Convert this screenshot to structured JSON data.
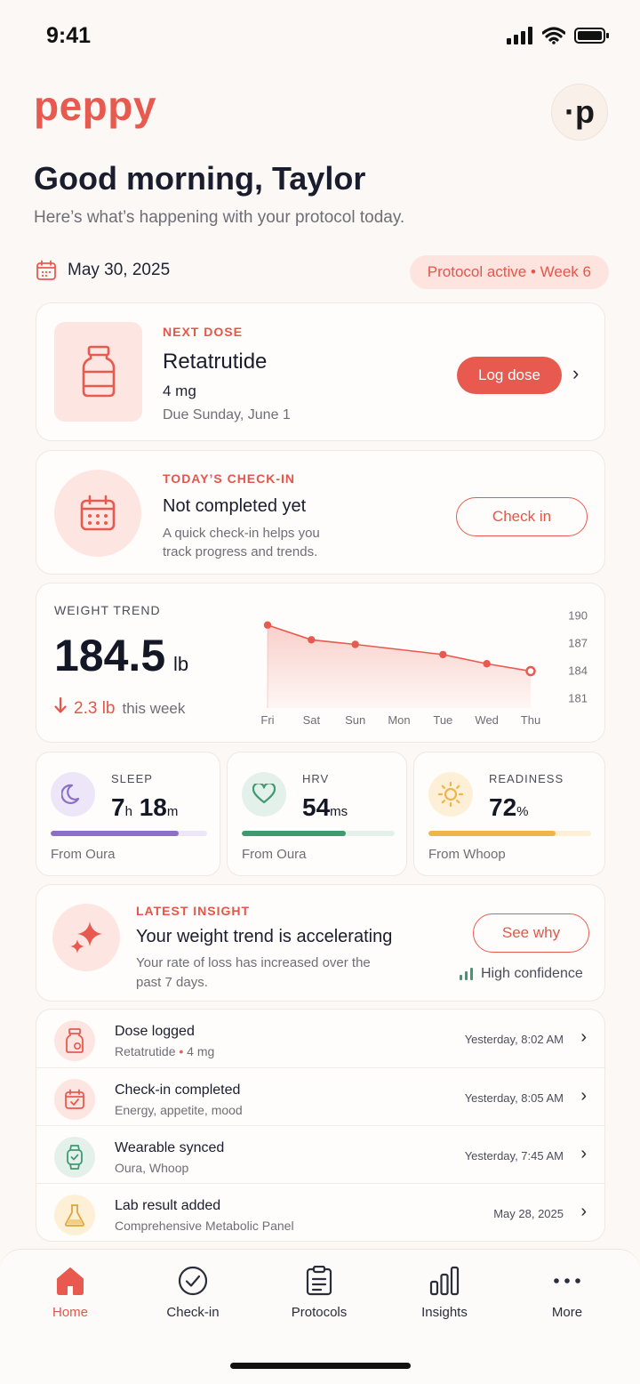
{
  "status": {
    "time": "9:41"
  },
  "brand": {
    "logo": "peppy",
    "avatar": "·p",
    "accent": "#e85a4f"
  },
  "header": {
    "greeting": "Good morning, Taylor",
    "subtitle": "Here’s what’s happening with your protocol today."
  },
  "date_row": {
    "date": "May 30, 2025",
    "protocol_status": "Protocol active • Week 6"
  },
  "next_dose": {
    "eyebrow": "NEXT DOSE",
    "name": "Retatrutide",
    "amount": "4 mg",
    "due": "Due Sunday, June 1",
    "button": "Log dose",
    "icon": "medicine-bottle-icon"
  },
  "checkin": {
    "eyebrow": "TODAY’S CHECK-IN",
    "title": "Not completed yet",
    "description": "A quick check-in helps you track progress and trends.",
    "button": "Check in",
    "icon": "calendar-icon"
  },
  "weight": {
    "label": "WEIGHT TREND",
    "value": "184.5",
    "unit": "lb",
    "delta": "2.3 lb",
    "period": "this week"
  },
  "chart_data": {
    "type": "area",
    "categories": [
      "Fri",
      "Sat",
      "Sun",
      "Mon",
      "Tue",
      "Wed",
      "Thu"
    ],
    "values": [
      189.0,
      187.4,
      186.9,
      null,
      185.8,
      184.8,
      184.0
    ],
    "point_days": [
      "Fri",
      "Sat",
      "Sun",
      "Tue",
      "Wed",
      "Thu"
    ],
    "point_values": [
      189.0,
      187.4,
      186.9,
      185.8,
      184.8,
      184.0
    ],
    "y_ticks": [
      "190",
      "187",
      "184",
      "181"
    ],
    "ylim": [
      180,
      191
    ],
    "title": "WEIGHT TREND",
    "xlabel": "",
    "ylabel": "",
    "grid": false,
    "color": "#e85a4f"
  },
  "metrics": [
    {
      "label": "SLEEP",
      "value_main": "7",
      "unit_main": "h",
      "value_sec": "18",
      "unit_sec": "m",
      "source": "From Oura",
      "progress": 0.82,
      "color": "#8b6fc9",
      "icon": "moon-icon"
    },
    {
      "label": "HRV",
      "value_main": "54",
      "unit_main": "ms",
      "source": "From Oura",
      "progress": 0.68,
      "color": "#3f9a72",
      "icon": "heart-icon"
    },
    {
      "label": "READINESS",
      "value_main": "72",
      "unit_main": "%",
      "source": "From Whoop",
      "progress": 0.78,
      "color": "#f0b44c",
      "icon": "sun-icon"
    }
  ],
  "insight": {
    "eyebrow": "LATEST INSIGHT",
    "title": "Your weight trend is accelerating",
    "description": "Your rate of loss has increased over the past 7 days.",
    "button": "See why",
    "confidence": "High confidence",
    "icon": "sparkle-icon"
  },
  "activity": [
    {
      "title": "Dose logged",
      "sub_main": "Retatrutide",
      "sub_extra": "4 mg",
      "time": "Yesterday, 8:02 AM",
      "icon": "medicine-bottle-icon",
      "color": "#fde6e1"
    },
    {
      "title": "Check-in completed",
      "sub_main": "Energy, appetite, mood",
      "time": "Yesterday, 8:05 AM",
      "icon": "calendar-check-icon",
      "color": "#fde6e1"
    },
    {
      "title": "Wearable synced",
      "sub_main": "Oura, Whoop",
      "time": "Yesterday, 7:45 AM",
      "icon": "watch-icon",
      "color": "#e3f1ea"
    },
    {
      "title": "Lab result added",
      "sub_main": "Comprehensive Metabolic Panel",
      "time": "May 28, 2025",
      "icon": "flask-icon",
      "color": "#fdf0d6"
    }
  ],
  "tabs": [
    {
      "label": "Home",
      "icon": "home-icon",
      "active": true
    },
    {
      "label": "Check-in",
      "icon": "check-circle-icon",
      "active": false
    },
    {
      "label": "Protocols",
      "icon": "clipboard-icon",
      "active": false
    },
    {
      "label": "Insights",
      "icon": "bar-chart-icon",
      "active": false
    },
    {
      "label": "More",
      "icon": "more-dots-icon",
      "active": false
    }
  ]
}
